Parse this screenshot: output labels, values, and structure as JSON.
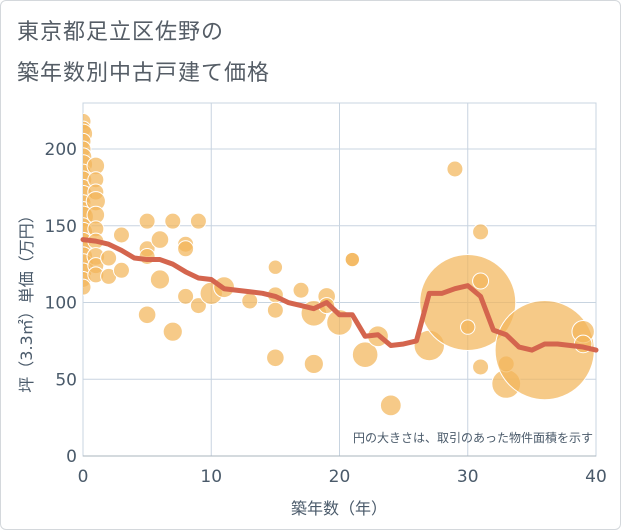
{
  "title_line1": "東京都足立区佐野の",
  "title_line2": "築年数別中古戸建て価格",
  "chart_data": {
    "type": "scatter",
    "title": "東京都足立区佐野の築年数別中古戸建て価格",
    "xlabel": "築年数（年）",
    "ylabel": "坪（3.3㎡）単価（万円）",
    "xlim": [
      0,
      40
    ],
    "ylim": [
      0,
      230
    ],
    "xticks": [
      0,
      10,
      20,
      30,
      40
    ],
    "yticks": [
      0,
      50,
      100,
      150,
      200
    ],
    "grid": true,
    "note": "円の大きさは、取引のあった物件面積を示す",
    "colors": {
      "bubble": "#f2b65a",
      "line": "#d4654e",
      "grid": "#c8d4e0",
      "text": "#4a5a6a"
    },
    "series": [
      {
        "type": "bubble",
        "points": [
          {
            "x": 0,
            "y": 218,
            "s": 1
          },
          {
            "x": 0,
            "y": 213,
            "s": 1
          },
          {
            "x": 0,
            "y": 210,
            "s": 1.2
          },
          {
            "x": 0,
            "y": 205,
            "s": 1
          },
          {
            "x": 0,
            "y": 200,
            "s": 1
          },
          {
            "x": 0,
            "y": 195,
            "s": 1.1
          },
          {
            "x": 0,
            "y": 190,
            "s": 1.2
          },
          {
            "x": 0,
            "y": 185,
            "s": 1
          },
          {
            "x": 0,
            "y": 180,
            "s": 1.1
          },
          {
            "x": 0,
            "y": 175,
            "s": 1
          },
          {
            "x": 0,
            "y": 170,
            "s": 1.2
          },
          {
            "x": 0,
            "y": 165,
            "s": 1
          },
          {
            "x": 0,
            "y": 160,
            "s": 1.1
          },
          {
            "x": 0,
            "y": 156,
            "s": 1.3
          },
          {
            "x": 0,
            "y": 150,
            "s": 1
          },
          {
            "x": 0,
            "y": 146,
            "s": 1.2
          },
          {
            "x": 0,
            "y": 140,
            "s": 1.1
          },
          {
            "x": 0,
            "y": 136,
            "s": 1
          },
          {
            "x": 0,
            "y": 130,
            "s": 1.2
          },
          {
            "x": 0,
            "y": 125,
            "s": 1.3
          },
          {
            "x": 0,
            "y": 120,
            "s": 1.1
          },
          {
            "x": 0,
            "y": 115,
            "s": 1
          },
          {
            "x": 0,
            "y": 110,
            "s": 1
          },
          {
            "x": 1,
            "y": 189,
            "s": 1.1
          },
          {
            "x": 1,
            "y": 180,
            "s": 1
          },
          {
            "x": 1,
            "y": 172,
            "s": 1
          },
          {
            "x": 1,
            "y": 166,
            "s": 1.2
          },
          {
            "x": 1,
            "y": 157,
            "s": 1.1
          },
          {
            "x": 1,
            "y": 148,
            "s": 1
          },
          {
            "x": 1,
            "y": 140,
            "s": 1
          },
          {
            "x": 1,
            "y": 130,
            "s": 1.1
          },
          {
            "x": 1,
            "y": 124,
            "s": 1
          },
          {
            "x": 1,
            "y": 118,
            "s": 1
          },
          {
            "x": 2,
            "y": 129,
            "s": 1
          },
          {
            "x": 2,
            "y": 117,
            "s": 1
          },
          {
            "x": 3,
            "y": 144,
            "s": 1
          },
          {
            "x": 3,
            "y": 121,
            "s": 1
          },
          {
            "x": 5,
            "y": 153,
            "s": 1
          },
          {
            "x": 5,
            "y": 135,
            "s": 1
          },
          {
            "x": 5,
            "y": 130,
            "s": 1
          },
          {
            "x": 5,
            "y": 92,
            "s": 1.1
          },
          {
            "x": 6,
            "y": 141,
            "s": 1.1
          },
          {
            "x": 6,
            "y": 115,
            "s": 1.2
          },
          {
            "x": 7,
            "y": 153,
            "s": 1
          },
          {
            "x": 7,
            "y": 81,
            "s": 1.2
          },
          {
            "x": 8,
            "y": 138,
            "s": 1
          },
          {
            "x": 8,
            "y": 135,
            "s": 1
          },
          {
            "x": 8,
            "y": 104,
            "s": 1
          },
          {
            "x": 9,
            "y": 153,
            "s": 1
          },
          {
            "x": 9,
            "y": 98,
            "s": 1
          },
          {
            "x": 10,
            "y": 106,
            "s": 1.4
          },
          {
            "x": 11,
            "y": 110,
            "s": 1.3
          },
          {
            "x": 13,
            "y": 101,
            "s": 1
          },
          {
            "x": 15,
            "y": 123,
            "s": 0.9
          },
          {
            "x": 15,
            "y": 105,
            "s": 1
          },
          {
            "x": 15,
            "y": 95,
            "s": 1
          },
          {
            "x": 15,
            "y": 64,
            "s": 1.1
          },
          {
            "x": 17,
            "y": 108,
            "s": 1
          },
          {
            "x": 18,
            "y": 93,
            "s": 1.6
          },
          {
            "x": 18,
            "y": 60,
            "s": 1.2
          },
          {
            "x": 19,
            "y": 104,
            "s": 1.1
          },
          {
            "x": 19,
            "y": 98,
            "s": 1
          },
          {
            "x": 20,
            "y": 87,
            "s": 1.6
          },
          {
            "x": 21,
            "y": 128,
            "s": 0.9
          },
          {
            "x": 21,
            "y": 128,
            "s": 0.9
          },
          {
            "x": 22,
            "y": 66,
            "s": 1.6
          },
          {
            "x": 23,
            "y": 78,
            "s": 1.3
          },
          {
            "x": 24,
            "y": 33,
            "s": 1.3
          },
          {
            "x": 27,
            "y": 72,
            "s": 1.9
          },
          {
            "x": 29,
            "y": 187,
            "s": 1
          },
          {
            "x": 30,
            "y": 100,
            "s": 6.0
          },
          {
            "x": 30,
            "y": 84,
            "s": 0.9
          },
          {
            "x": 31,
            "y": 146,
            "s": 1
          },
          {
            "x": 31,
            "y": 114,
            "s": 1
          },
          {
            "x": 31,
            "y": 58,
            "s": 1
          },
          {
            "x": 33,
            "y": 47,
            "s": 1.8
          },
          {
            "x": 33,
            "y": 60,
            "s": 1
          },
          {
            "x": 36,
            "y": 69,
            "s": 6.2
          },
          {
            "x": 39,
            "y": 81,
            "s": 1.4
          },
          {
            "x": 39,
            "y": 73,
            "s": 1.1
          }
        ]
      },
      {
        "type": "line",
        "x": [
          0,
          1,
          2,
          3,
          4,
          5,
          6,
          7,
          8,
          9,
          10,
          11,
          12,
          13,
          14,
          15,
          16,
          17,
          18,
          19,
          20,
          21,
          22,
          23,
          24,
          25,
          26,
          27,
          28,
          29,
          30,
          31,
          32,
          33,
          34,
          35,
          36,
          37,
          38,
          39,
          40
        ],
        "y": [
          141,
          140,
          138,
          134,
          129,
          128,
          128,
          125,
          120,
          116,
          115,
          109,
          108,
          107,
          106,
          104,
          100,
          98,
          96,
          100,
          92,
          92,
          78,
          79,
          72,
          73,
          75,
          106,
          106,
          109,
          111,
          104,
          82,
          79,
          71,
          69,
          73,
          73,
          72,
          71,
          69
        ]
      }
    ]
  }
}
